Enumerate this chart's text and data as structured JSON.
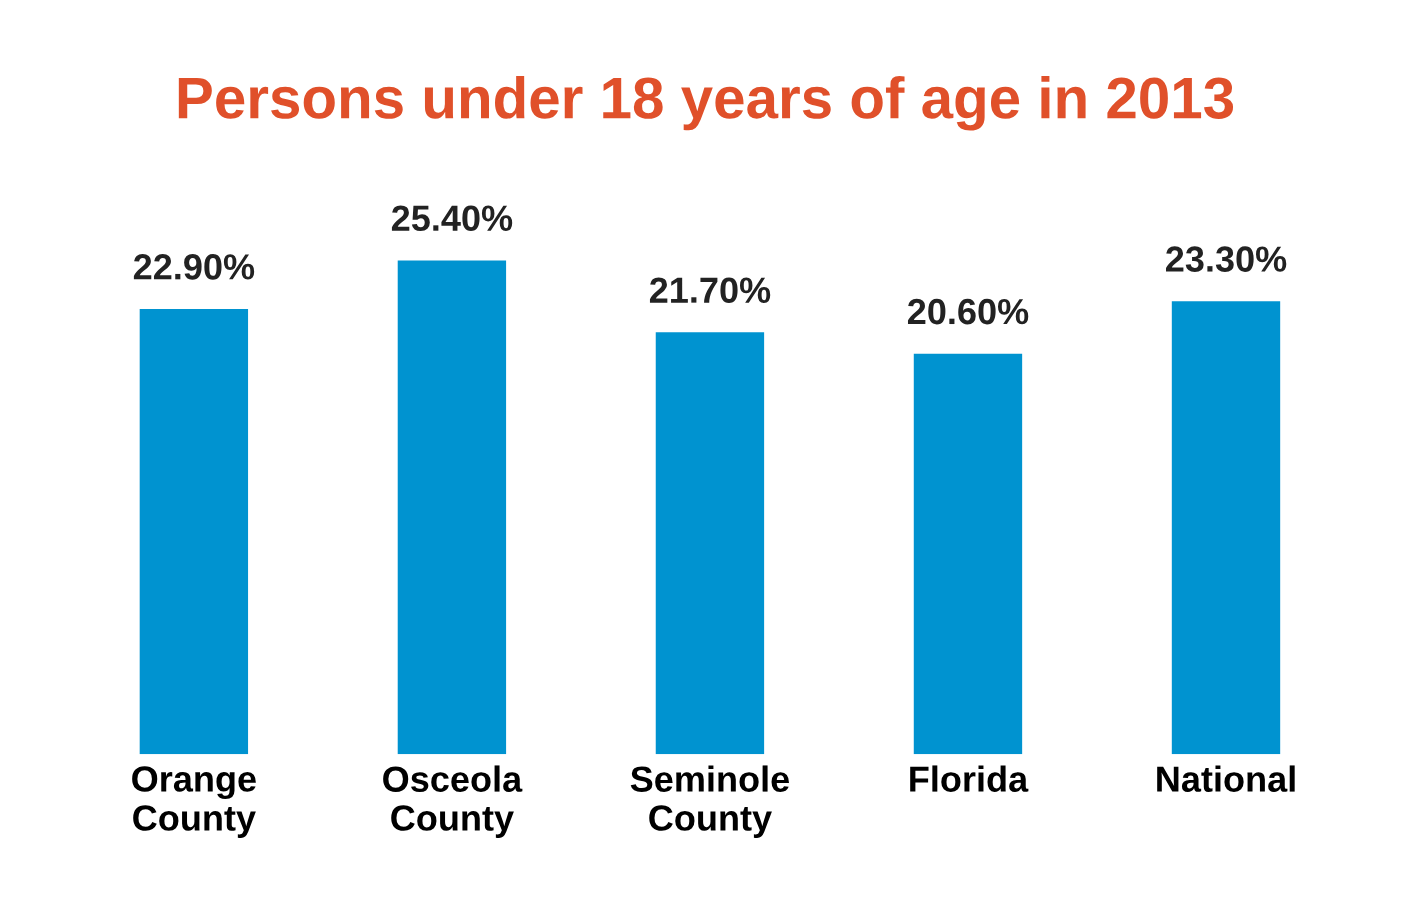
{
  "chart_data": {
    "type": "bar",
    "title": "Persons under 18 years of age in 2013",
    "categories": [
      "Orange\nCounty",
      "Osceola\nCounty",
      "Seminole\nCounty",
      "Florida",
      "National"
    ],
    "values": [
      22.9,
      25.4,
      21.7,
      20.6,
      23.3
    ],
    "value_labels": [
      "22.90%",
      "25.40%",
      "21.70%",
      "20.60%",
      "23.30%"
    ],
    "color": "#0093d0",
    "grid": false,
    "legend": false
  }
}
